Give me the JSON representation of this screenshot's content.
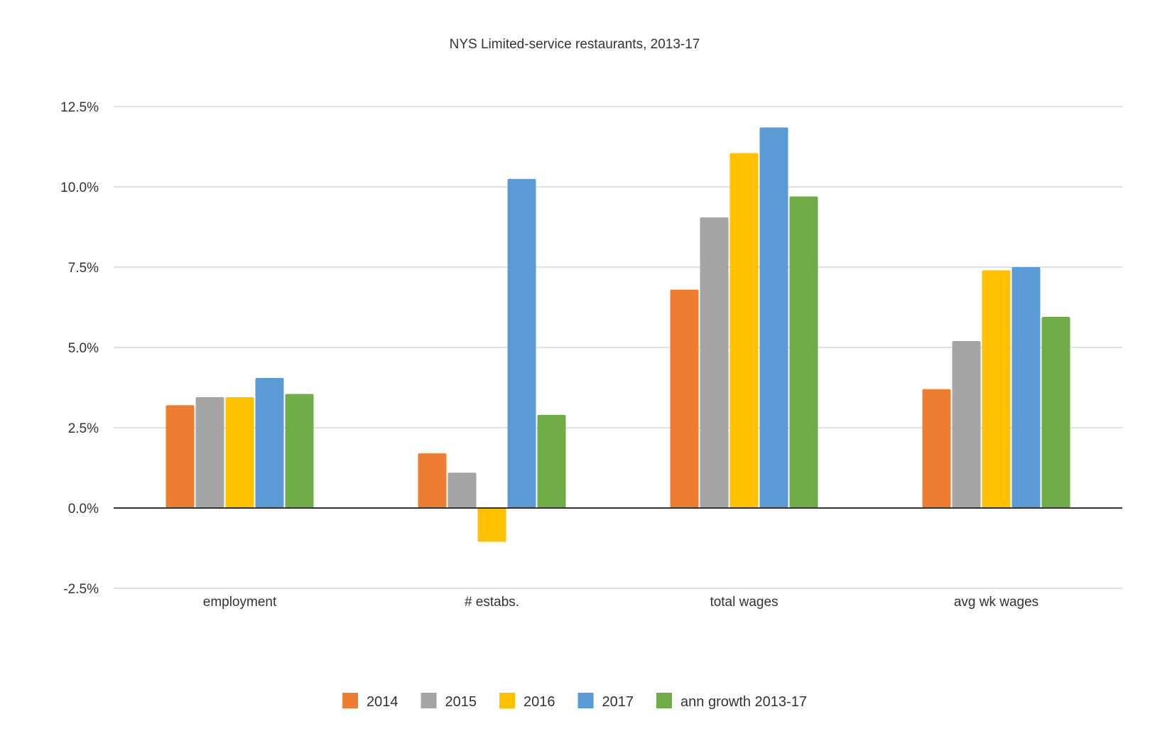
{
  "chart_data": {
    "type": "bar",
    "title": "NYS Limited-service restaurants, 2013-17",
    "xlabel": "",
    "ylabel": "",
    "ylim": [
      -2.5,
      12.5
    ],
    "yticks": [
      -2.5,
      0.0,
      2.5,
      5.0,
      7.5,
      10.0,
      12.5
    ],
    "ytick_labels": [
      "-2.5%",
      "0.0%",
      "2.5%",
      "5.0%",
      "7.5%",
      "10.0%",
      "12.5%"
    ],
    "grid": true,
    "legend_position": "bottom",
    "categories": [
      "employment",
      "# estabs.",
      "total wages",
      "avg wk wages"
    ],
    "series": [
      {
        "name": "2014",
        "color": "#ED7D31",
        "values": [
          3.2,
          1.7,
          6.8,
          3.7
        ]
      },
      {
        "name": "2015",
        "color": "#A5A5A5",
        "values": [
          3.45,
          1.1,
          9.05,
          5.2
        ]
      },
      {
        "name": "2016",
        "color": "#FFC000",
        "values": [
          3.45,
          -1.05,
          11.05,
          7.4
        ]
      },
      {
        "name": "2017",
        "color": "#5B9BD5",
        "values": [
          4.05,
          10.25,
          11.85,
          7.5
        ]
      },
      {
        "name": "ann growth 2013-17",
        "color": "#70AD47",
        "values": [
          3.55,
          2.9,
          9.7,
          5.95
        ]
      }
    ]
  }
}
